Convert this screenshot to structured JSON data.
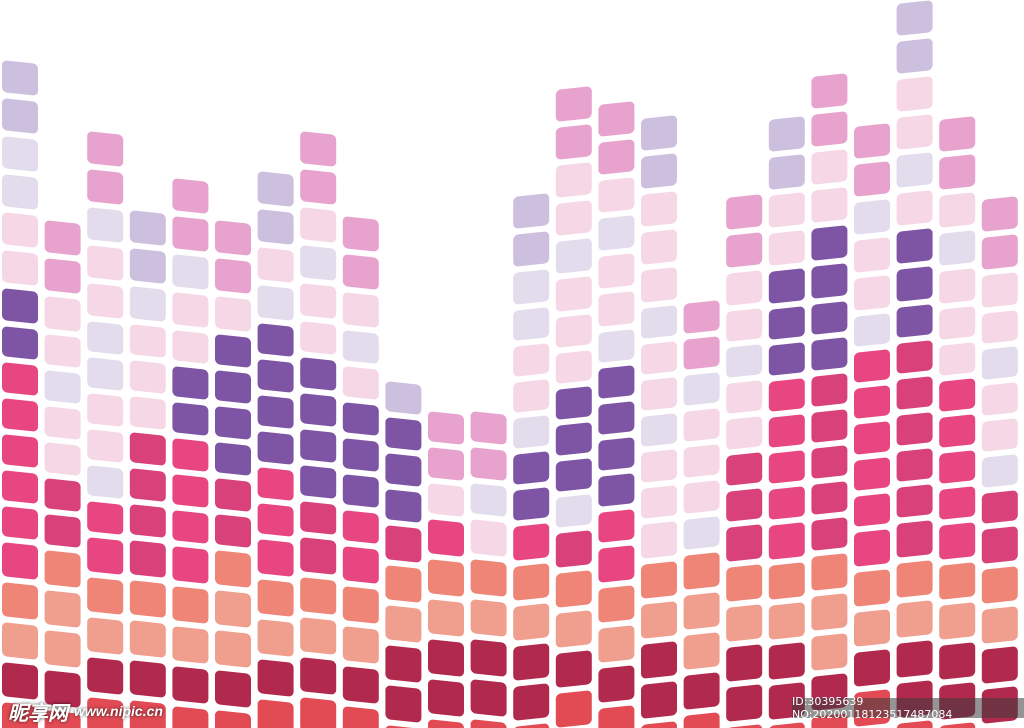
{
  "palette": {
    "magenta_top": "#E7A3CD",
    "pink_light": "#F6D7E6",
    "lavender_light": "#E2DCEC",
    "lavender": "#CDBFDE",
    "purple": "#7E55A5",
    "hot_pink": "#E84681",
    "deep_pink": "#D9417B",
    "salmon": "#EE8577",
    "salmon_light": "#F09E8E",
    "crimson": "#B2294E",
    "red": "#E24B54",
    "faded_pink": "#F7D9E5"
  },
  "watermark": {
    "brand": "昵享网",
    "site": "www.nipic.cn",
    "id_text": "ID:30395639 NO:20200118123517487084"
  }
}
